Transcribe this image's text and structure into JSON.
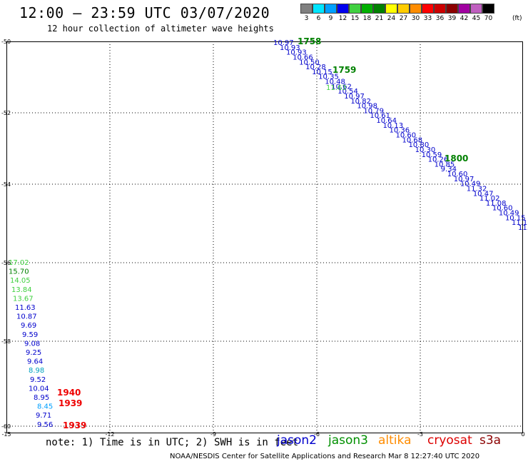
{
  "header": {
    "title": "12:00 – 23:59 UTC 03/07/2020",
    "subtitle": "12 hour collection of altimeter wave heights"
  },
  "colorbar": {
    "unit": "(ft)",
    "items": [
      {
        "label": "3",
        "color": "#808080"
      },
      {
        "label": "6",
        "color": "#00e5ff"
      },
      {
        "label": "9",
        "color": "#00a0ff"
      },
      {
        "label": "12",
        "color": "#0000ee"
      },
      {
        "label": "15",
        "color": "#40d040"
      },
      {
        "label": "18",
        "color": "#00b000"
      },
      {
        "label": "21",
        "color": "#008000"
      },
      {
        "label": "24",
        "color": "#ffff00"
      },
      {
        "label": "27",
        "color": "#ffcc00"
      },
      {
        "label": "30",
        "color": "#ff8c00"
      },
      {
        "label": "33",
        "color": "#ff0000"
      },
      {
        "label": "36",
        "color": "#cc0000"
      },
      {
        "label": "39",
        "color": "#8b0000"
      },
      {
        "label": "42",
        "color": "#a000a0"
      },
      {
        "label": "45",
        "color": "#c060c0"
      },
      {
        "label": "70",
        "color": "#000000"
      }
    ]
  },
  "axes": {
    "lat_labels": [
      "-50",
      "-52",
      "-54",
      "-56",
      "-58",
      "-60"
    ],
    "lon_labels": [
      "-15",
      "-12",
      "-9",
      "-6",
      "-3",
      "0"
    ]
  },
  "tracks": {
    "upper_track": {
      "color": "#0000cc",
      "values": [
        "10.97",
        "10.93",
        "10.93",
        "10.66",
        "10.50",
        "10.28",
        "10.15",
        "10.35",
        "10.48",
        "10.62",
        "10.54",
        "10.97",
        "10.82",
        "10.98",
        "10.79",
        "10.61",
        "10.64",
        "10.13",
        "10.36",
        "10.60",
        "10.68",
        "10.80",
        "10.30",
        "10.59",
        "10.26",
        "10.85",
        "9.34",
        "10.60",
        "10.97",
        "10.49",
        "11.32",
        "10.47",
        "11.02",
        "11.08",
        "10.60",
        "10.49",
        "10.15",
        "11.17",
        "11."
      ],
      "times": [
        {
          "text": "1758",
          "color": "#008000"
        },
        {
          "text": "1759",
          "color": "#008000"
        },
        {
          "text": "1800",
          "color": "#008000"
        }
      ],
      "green_value": "11.63"
    },
    "lower_track": {
      "values": [
        {
          "v": "17.02",
          "color": "#40d040"
        },
        {
          "v": "15.70",
          "color": "#008000"
        },
        {
          "v": "14.05",
          "color": "#40d040"
        },
        {
          "v": "13.84",
          "color": "#40d040"
        },
        {
          "v": "13.67",
          "color": "#40d040"
        },
        {
          "v": "11.63",
          "color": "#0000cc"
        },
        {
          "v": "10.87",
          "color": "#0000cc"
        },
        {
          "v": "9.69",
          "color": "#0000cc"
        },
        {
          "v": "9.59",
          "color": "#0000cc"
        },
        {
          "v": "9.08",
          "color": "#0000cc"
        },
        {
          "v": "9.25",
          "color": "#0000cc"
        },
        {
          "v": "9.64",
          "color": "#0000cc"
        },
        {
          "v": "8.98",
          "color": "#00a0c0"
        },
        {
          "v": "9.52",
          "color": "#0000cc"
        },
        {
          "v": "10.04",
          "color": "#0000cc"
        },
        {
          "v": "8.95",
          "color": "#0000cc"
        },
        {
          "v": "8.45",
          "color": "#00a0ff"
        },
        {
          "v": "9.71",
          "color": "#0000cc"
        },
        {
          "v": "9.56",
          "color": "#0000cc"
        }
      ],
      "times": [
        {
          "text": "1940",
          "color": "#ee0000"
        },
        {
          "text": "1939",
          "color": "#ee0000"
        },
        {
          "text": "1939",
          "color": "#ee0000"
        }
      ]
    }
  },
  "footer": {
    "note": "note: 1) Time is in UTC; 2) SWH is in feet",
    "satellites": [
      {
        "name": "jason2",
        "color": "#0000cc"
      },
      {
        "name": "jason3",
        "color": "#009000"
      },
      {
        "name": "altika",
        "color": "#ff8c00"
      },
      {
        "name": "cryosat",
        "color": "#dd0000"
      },
      {
        "name": "s3a",
        "color": "#8b0000"
      }
    ],
    "credit": "NOAA/NESDIS Center for Satellite Applications and Research   Mar  8 12:27:40 UTC 2020"
  }
}
